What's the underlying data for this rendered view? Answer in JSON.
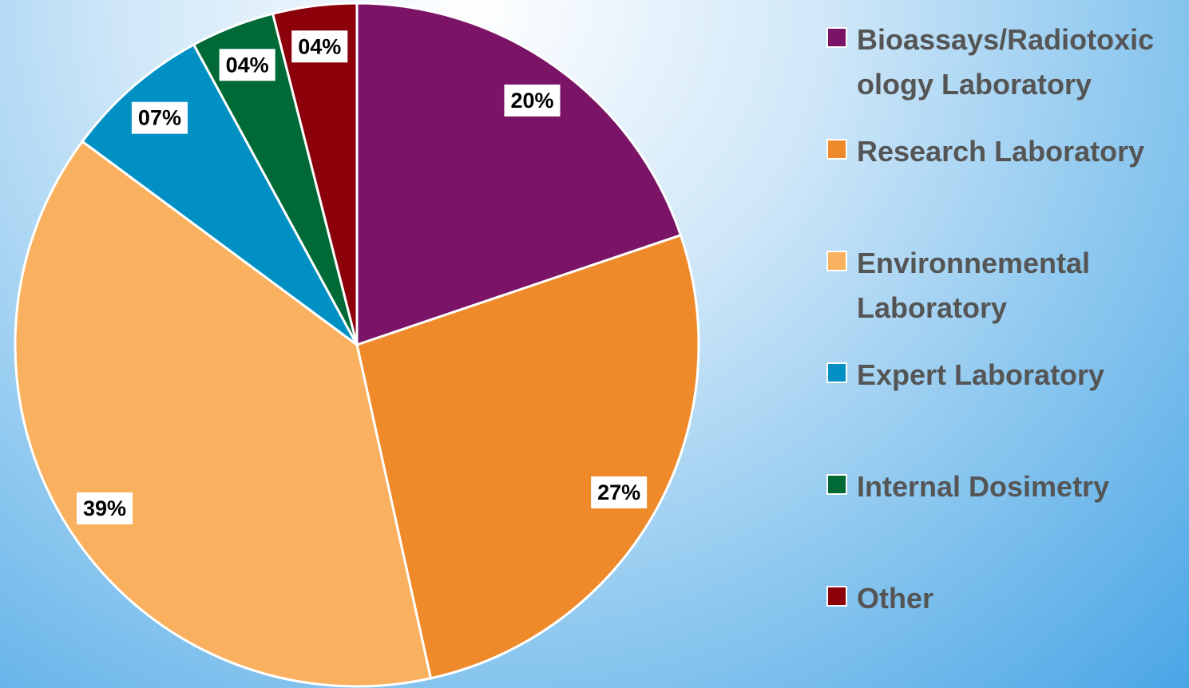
{
  "chart_data": {
    "type": "pie",
    "categories": [
      "Bioassays/Radiotoxicology Laboratory",
      "Research Laboratory",
      "Environnemental Laboratory",
      "Expert Laboratory",
      "Internal Dosimetry",
      "Other"
    ],
    "values": [
      20,
      27,
      39,
      7,
      4,
      4
    ],
    "value_labels": [
      "20%",
      "27%",
      "39%",
      "07%",
      "04%",
      "04%"
    ],
    "colors": [
      "#7b1467",
      "#ef8a2b",
      "#f9b160",
      "#0090c4",
      "#006a36",
      "#8b0009"
    ],
    "legend": "right"
  }
}
